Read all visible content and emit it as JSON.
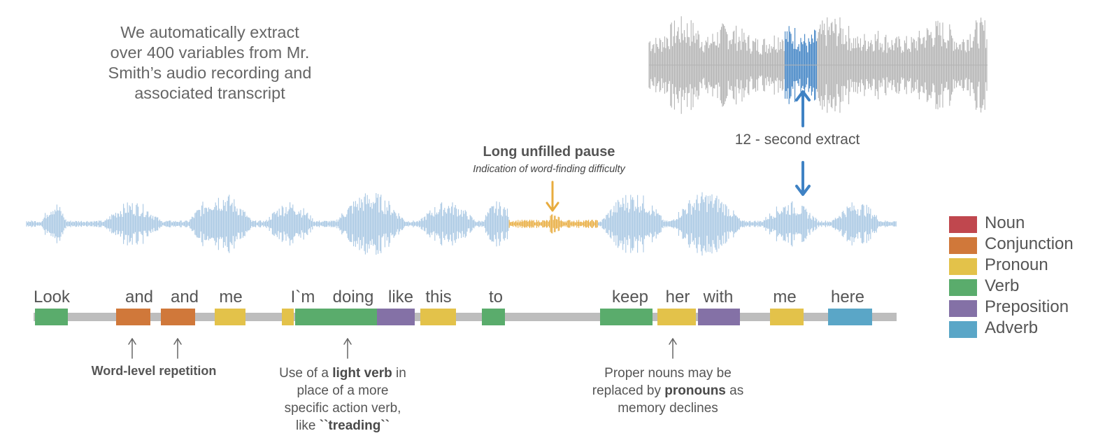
{
  "intro": {
    "lines": [
      "We automatically extract",
      "over 400 variables from Mr.",
      "Smith’s audio recording and",
      "associated transcript"
    ]
  },
  "pause": {
    "title": "Long unfilled pause",
    "subtitle": "Indication of  word-finding difficulty"
  },
  "extract_label": "12 - second extract",
  "words": [
    {
      "text": "Look",
      "pos": "Verb"
    },
    {
      "text": "and",
      "pos": "Conjunction"
    },
    {
      "text": "and",
      "pos": "Conjunction"
    },
    {
      "text": "me",
      "pos": "Pronoun"
    },
    {
      "text": "I`m",
      "pos": "Pronoun"
    },
    {
      "text": "doing",
      "pos": "Verb"
    },
    {
      "text": "like",
      "pos": "Preposition"
    },
    {
      "text": "this",
      "pos": "Pronoun"
    },
    {
      "text": "to",
      "pos": "Verb"
    },
    {
      "text": "keep",
      "pos": "Verb"
    },
    {
      "text": "her",
      "pos": "Pronoun"
    },
    {
      "text": "with",
      "pos": "Preposition"
    },
    {
      "text": "me",
      "pos": "Pronoun"
    },
    {
      "text": "here",
      "pos": "Adverb"
    }
  ],
  "annotations": {
    "repetition": "Word-level repetition",
    "light_verb": {
      "pre": "Use of a ",
      "bold": "light verb",
      "post1": " in",
      "line2": "place of a more",
      "line3": "specific action verb,",
      "line4_pre": "like ",
      "line4_bold": "``treading``"
    },
    "pronouns": {
      "line1": "Proper nouns may be",
      "line2_pre": "replaced by ",
      "line2_bold": "pronouns",
      "line2_post": " as",
      "line3": "memory declines"
    }
  },
  "legend": [
    {
      "label": "Noun",
      "color": "#c0474e"
    },
    {
      "label": "Conjunction",
      "color": "#d0783a"
    },
    {
      "label": "Pronoun",
      "color": "#e3c24a"
    },
    {
      "label": "Verb",
      "color": "#5aac6c"
    },
    {
      "label": "Preposition",
      "color": "#8471a6"
    },
    {
      "label": "Adverb",
      "color": "#5aa6c7"
    }
  ],
  "colors": {
    "waveform_main": "#a8c7e3",
    "waveform_pause": "#e8ac3e",
    "waveform_small": "#b3b3b3",
    "waveform_highlight": "#3f82c4",
    "arrow_blue": "#3f82c4",
    "arrow_orange": "#e8ac3e"
  }
}
